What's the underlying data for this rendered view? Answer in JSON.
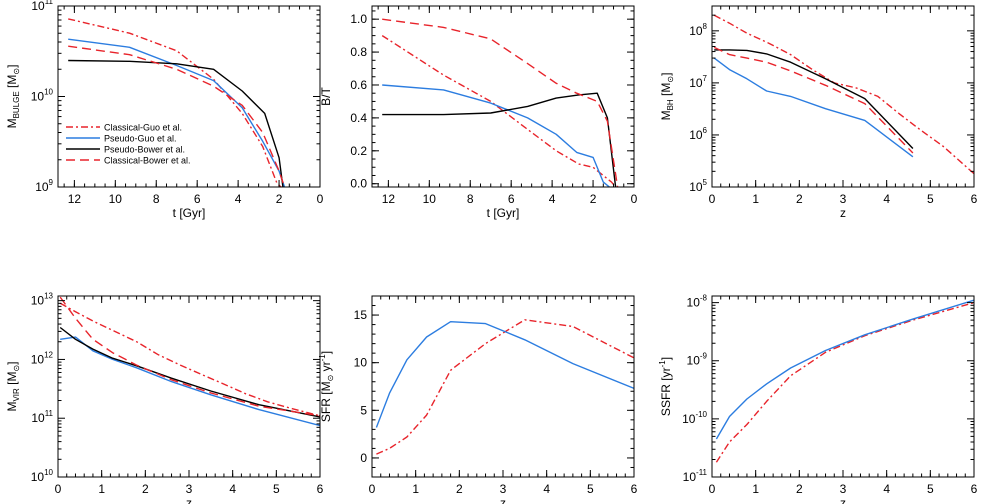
{
  "figure": {
    "description_note": ""
  },
  "styles": {
    "Classical-Guo et al.": {
      "color": "#e8242b",
      "dash": "7,3,2,3"
    },
    "Pseudo-Guo et al.": {
      "color": "#2c7de0",
      "dash": ""
    },
    "Pseudo-Bower et al.": {
      "color": "#000000",
      "dash": ""
    },
    "Classical-Bower et al.": {
      "color": "#e8242b",
      "dash": "9,5"
    }
  },
  "chart_data": [
    {
      "type": "line",
      "id": "bulge",
      "xlabel": "t [Gyr]",
      "ylabel": "M_BULGE [M_sun]",
      "xlim": [
        12.8,
        0
      ],
      "ylim": [
        1000000000.0,
        100000000000.0
      ],
      "ylog": true,
      "xticks": [
        12,
        10,
        8,
        6,
        4,
        2,
        0
      ],
      "yticks": [
        1000000000.0,
        10000000000.0,
        100000000000.0
      ],
      "ytick_labels": [
        [
          "10",
          "9"
        ],
        [
          "10",
          "10"
        ],
        [
          "10",
          "11"
        ]
      ],
      "legend": {
        "placement": "bottom-left",
        "entries": [
          "Classical-Guo et al.",
          "Pseudo-Guo et al.",
          "Pseudo-Bower et al.",
          "Classical-Bower et al."
        ]
      },
      "series": [
        {
          "name": "Classical-Guo et al.",
          "x": [
            12.3,
            9.3,
            7.0,
            5.2,
            3.8,
            2.8,
            2.1,
            1.8
          ],
          "y": [
            72000000000.0,
            50000000000.0,
            32000000000.0,
            15500000000.0,
            6500000000.0,
            2800000000.0,
            1100000000.0,
            950000000.0
          ]
        },
        {
          "name": "Pseudo-Guo et al.",
          "x": [
            12.3,
            9.3,
            7.0,
            5.2,
            3.8,
            2.8,
            2.0,
            1.7
          ],
          "y": [
            43000000000.0,
            35000000000.0,
            22000000000.0,
            15000000000.0,
            7500000000.0,
            3200000000.0,
            1500000000.0,
            950000000.0
          ]
        },
        {
          "name": "Pseudo-Bower et al.",
          "x": [
            12.3,
            9.3,
            7.0,
            5.2,
            3.8,
            2.7,
            2.0,
            1.8
          ],
          "y": [
            25000000000.0,
            24500000000.0,
            23000000000.0,
            20000000000.0,
            11500000000.0,
            6500000000.0,
            2100000000.0,
            950000000.0
          ]
        },
        {
          "name": "Classical-Bower et al.",
          "x": [
            12.3,
            9.3,
            7.0,
            5.2,
            3.8,
            2.8,
            2.0,
            1.7
          ],
          "y": [
            36000000000.0,
            29000000000.0,
            20000000000.0,
            13000000000.0,
            8000000000.0,
            4000000000.0,
            1500000000.0,
            950000000.0
          ]
        }
      ]
    },
    {
      "type": "line",
      "id": "bt",
      "xlabel": "t [Gyr]",
      "ylabel": "B/T",
      "xlim": [
        12.8,
        0
      ],
      "ylim": [
        -0.02,
        1.08
      ],
      "ylog": false,
      "xticks": [
        12,
        10,
        8,
        6,
        4,
        2,
        0
      ],
      "yticks": [
        0.0,
        0.2,
        0.4,
        0.6,
        0.8,
        1.0
      ],
      "ytick_labels": [
        [
          "0.0"
        ],
        [
          "0.2"
        ],
        [
          "0.4"
        ],
        [
          "0.6"
        ],
        [
          "0.8"
        ],
        [
          "1.0"
        ]
      ],
      "series": [
        {
          "name": "Classical-Guo et al.",
          "x": [
            12.3,
            9.3,
            7.0,
            5.2,
            3.8,
            2.7,
            2.0,
            1.5,
            1.1,
            0.9
          ],
          "y": [
            0.9,
            0.66,
            0.5,
            0.33,
            0.2,
            0.12,
            0.1,
            0.05,
            0.01,
            -0.02
          ]
        },
        {
          "name": "Pseudo-Guo et al.",
          "x": [
            12.3,
            9.3,
            7.0,
            5.2,
            3.8,
            2.8,
            2.0,
            1.5,
            1.2
          ],
          "y": [
            0.6,
            0.57,
            0.49,
            0.4,
            0.3,
            0.19,
            0.16,
            0.01,
            -0.02
          ]
        },
        {
          "name": "Pseudo-Bower et al.",
          "x": [
            12.3,
            9.3,
            7.0,
            5.2,
            3.8,
            2.7,
            1.8,
            1.3,
            0.9
          ],
          "y": [
            0.42,
            0.42,
            0.43,
            0.47,
            0.52,
            0.54,
            0.55,
            0.4,
            -0.02
          ]
        },
        {
          "name": "Classical-Bower et al.",
          "x": [
            12.3,
            9.3,
            7.0,
            5.2,
            3.8,
            2.8,
            1.8,
            1.3,
            0.8
          ],
          "y": [
            1.0,
            0.95,
            0.88,
            0.73,
            0.61,
            0.55,
            0.5,
            0.38,
            -0.02
          ]
        }
      ]
    },
    {
      "type": "line",
      "id": "bh",
      "xlabel": "z",
      "ylabel": "M_BH [M_sun]",
      "xlim": [
        0,
        6
      ],
      "ylim": [
        100000.0,
        300000000.0
      ],
      "ylog": true,
      "xticks": [
        0,
        1,
        2,
        3,
        4,
        5,
        6
      ],
      "yticks": [
        100000.0,
        1000000.0,
        10000000.0,
        100000000.0
      ],
      "ytick_labels": [
        [
          "10",
          "5"
        ],
        [
          "10",
          "6"
        ],
        [
          "10",
          "7"
        ],
        [
          "10",
          "8"
        ]
      ],
      "series": [
        {
          "name": "Classical-Guo et al.",
          "x": [
            0.05,
            0.4,
            0.8,
            1.3,
            1.8,
            2.3,
            2.8,
            3.3,
            3.8,
            4.3,
            4.8,
            5.3,
            6.0
          ],
          "y": [
            200000000.0,
            140000000.0,
            90000000.0,
            58000000.0,
            35000000.0,
            18000000.0,
            10000000.0,
            8000000.0,
            5500000.0,
            2500000.0,
            1200000.0,
            600000.0,
            180000.0
          ]
        },
        {
          "name": "Pseudo-Guo et al.",
          "x": [
            0.05,
            0.4,
            0.8,
            1.25,
            1.8,
            2.6,
            3.5,
            4.6
          ],
          "y": [
            30000000.0,
            18000000.0,
            12000000.0,
            7000000.0,
            5500000.0,
            3200000.0,
            1900000.0,
            380000.0
          ]
        },
        {
          "name": "Pseudo-Bower et al.",
          "x": [
            0.05,
            0.4,
            0.8,
            1.25,
            1.8,
            2.6,
            3.5,
            4.6
          ],
          "y": [
            43000000.0,
            43000000.0,
            42000000.0,
            36000000.0,
            25000000.0,
            12000000.0,
            5000000.0,
            550000.0
          ]
        },
        {
          "name": "Classical-Bower et al.",
          "x": [
            0.05,
            0.4,
            0.8,
            1.25,
            1.8,
            2.6,
            3.5,
            4.6
          ],
          "y": [
            48000000.0,
            35000000.0,
            30000000.0,
            25000000.0,
            17000000.0,
            9000000.0,
            4000000.0,
            450000.0
          ]
        }
      ]
    },
    {
      "type": "line",
      "id": "vir",
      "xlabel": "z",
      "ylabel": "M_VIR [M_sun]",
      "xlim": [
        0,
        6
      ],
      "ylim": [
        10000000000.0,
        12000000000000.0
      ],
      "ylog": true,
      "xticks": [
        0,
        1,
        2,
        3,
        4,
        5,
        6
      ],
      "yticks": [
        10000000000.0,
        100000000000.0,
        1000000000000.0,
        10000000000000.0
      ],
      "ytick_labels": [
        [
          "10",
          "10"
        ],
        [
          "10",
          "11"
        ],
        [
          "10",
          "12"
        ],
        [
          "10",
          "13"
        ]
      ],
      "series": [
        {
          "name": "Classical-Guo et al.",
          "x": [
            0.05,
            0.4,
            0.8,
            1.3,
            1.8,
            2.3,
            2.8,
            3.3,
            3.8,
            4.3,
            4.8,
            5.3,
            6.0
          ],
          "y": [
            9000000000000.0,
            6500000000000.0,
            4500000000000.0,
            3000000000000.0,
            2000000000000.0,
            1200000000000.0,
            800000000000.0,
            550000000000.0,
            380000000000.0,
            260000000000.0,
            190000000000.0,
            150000000000.0,
            110000000000.0
          ]
        },
        {
          "name": "Pseudo-Guo et al.",
          "x": [
            0.05,
            0.4,
            0.8,
            1.25,
            1.8,
            2.6,
            3.5,
            4.6,
            6.0
          ],
          "y": [
            2200000000000.0,
            2400000000000.0,
            1400000000000.0,
            1000000000000.0,
            720000000000.0,
            420000000000.0,
            250000000000.0,
            140000000000.0,
            75000000000.0
          ]
        },
        {
          "name": "Pseudo-Bower et al.",
          "x": [
            0.05,
            0.4,
            0.8,
            1.25,
            1.8,
            2.6,
            3.5,
            4.6,
            6.0
          ],
          "y": [
            3500000000000.0,
            2200000000000.0,
            1500000000000.0,
            1050000000000.0,
            780000000000.0,
            480000000000.0,
            290000000000.0,
            170000000000.0,
            105000000000.0
          ]
        },
        {
          "name": "Classical-Bower et al.",
          "x": [
            0.05,
            0.4,
            0.8,
            1.25,
            1.8,
            2.6,
            3.5,
            4.6,
            6.0
          ],
          "y": [
            11500000000000.0,
            5000000000000.0,
            2200000000000.0,
            1300000000000.0,
            800000000000.0,
            450000000000.0,
            270000000000.0,
            160000000000.0,
            110000000000.0
          ]
        }
      ]
    },
    {
      "type": "line",
      "id": "sfr",
      "xlabel": "z",
      "ylabel": "SFR [M_sun yr^-1]",
      "xlim": [
        0,
        6
      ],
      "ylim": [
        -2,
        17
      ],
      "ylog": false,
      "xticks": [
        0,
        1,
        2,
        3,
        4,
        5,
        6
      ],
      "yticks": [
        0,
        5,
        10,
        15
      ],
      "ytick_labels": [
        [
          "0"
        ],
        [
          "5"
        ],
        [
          "10"
        ],
        [
          "15"
        ]
      ],
      "series": [
        {
          "name": "Classical-Guo et al.",
          "x": [
            0.1,
            0.4,
            0.8,
            1.25,
            1.8,
            2.6,
            3.5,
            4.6,
            6.0
          ],
          "y": [
            0.4,
            1.0,
            2.2,
            4.5,
            9.2,
            12.0,
            14.5,
            13.8,
            10.5
          ]
        },
        {
          "name": "Pseudo-Guo et al.",
          "x": [
            0.1,
            0.4,
            0.8,
            1.25,
            1.8,
            2.6,
            3.5,
            4.6,
            6.0
          ],
          "y": [
            3.2,
            6.8,
            10.3,
            12.7,
            14.3,
            14.1,
            12.4,
            9.9,
            7.3
          ]
        }
      ]
    },
    {
      "type": "line",
      "id": "ssfr",
      "xlabel": "z",
      "ylabel": "SSFR [yr^-1]",
      "xlim": [
        0,
        6
      ],
      "ylim": [
        1e-11,
        1.3e-08
      ],
      "ylog": true,
      "xticks": [
        0,
        1,
        2,
        3,
        4,
        5,
        6
      ],
      "yticks": [
        1e-11,
        1e-10,
        1e-09,
        1e-08
      ],
      "ytick_labels": [
        [
          "10",
          "-11"
        ],
        [
          "10",
          "-10"
        ],
        [
          "10",
          "-9"
        ],
        [
          "10",
          "-8"
        ]
      ],
      "series": [
        {
          "name": "Classical-Guo et al.",
          "x": [
            0.1,
            0.4,
            0.8,
            1.25,
            1.8,
            2.6,
            3.5,
            4.6,
            6.0
          ],
          "y": [
            1.8e-11,
            4e-11,
            8e-11,
            2e-10,
            5.5e-10,
            1.4e-09,
            2.7e-09,
            5e-09,
            1e-08
          ]
        },
        {
          "name": "Pseudo-Guo et al.",
          "x": [
            0.1,
            0.4,
            0.8,
            1.25,
            1.8,
            2.6,
            3.5,
            4.6,
            6.0
          ],
          "y": [
            4.5e-11,
            1.1e-10,
            2.2e-10,
            4e-10,
            7.5e-10,
            1.5e-09,
            2.8e-09,
            5.2e-09,
            1.1e-08
          ]
        }
      ]
    }
  ]
}
